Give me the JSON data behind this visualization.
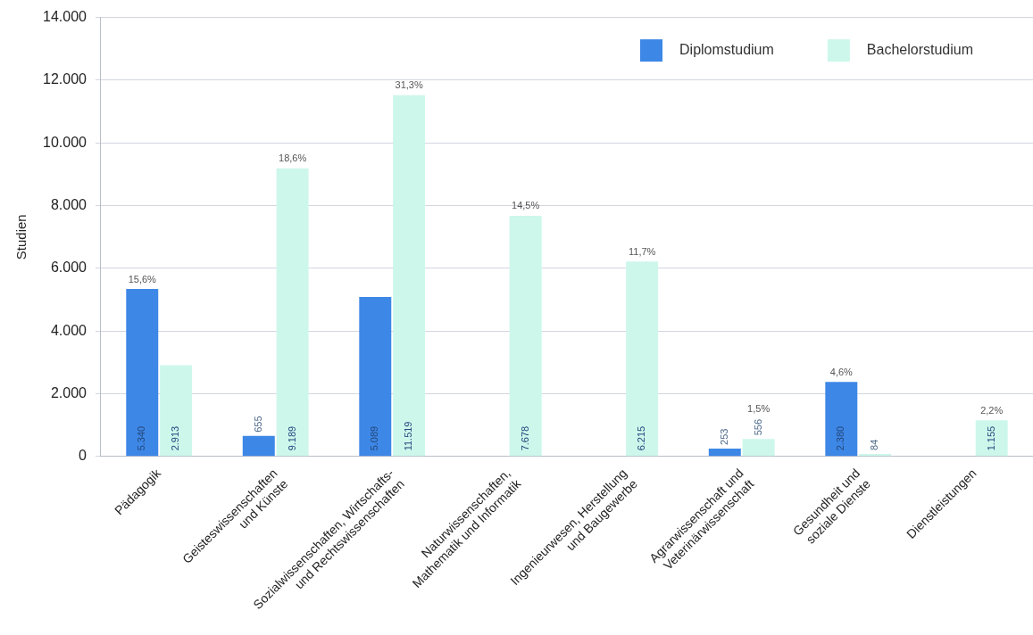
{
  "chart_data": {
    "type": "bar",
    "ylabel": "Studien",
    "categories": [
      "Pädagogik",
      "Geisteswissenschaften\nund Künste",
      "Sozialwissenschaften, Wirtschafts-\nund Rechtswissenschaften",
      "Naturwissenschaften,\nMathematik und Informatik",
      "Ingenieurwesen, Herstellung\nund Baugewerbe",
      "Agrarwissenschaft und\nVeterinärwissenschaft",
      "Gesundheit und\nsoziale Dienste",
      "Dienstleistungen"
    ],
    "series": [
      {
        "name": "Diplomstudium",
        "color": "#3d87e6",
        "values": [
          5340,
          655,
          5089,
          null,
          null,
          253,
          2380,
          null
        ],
        "value_labels": [
          "5.340",
          "655",
          "5.089",
          null,
          null,
          "253",
          "2.380",
          null
        ]
      },
      {
        "name": "Bachelorstudium",
        "color": "#cdf7eb",
        "values": [
          2913,
          9189,
          11519,
          7678,
          6215,
          556,
          84,
          1155
        ],
        "value_labels": [
          "2.913",
          "9.189",
          "11.519",
          "7.678",
          "6.215",
          "556",
          "84",
          "1.155"
        ]
      }
    ],
    "ylim": [
      0,
      14000
    ],
    "yticks": [
      0,
      {
        "value": 2000,
        "label": "2.000"
      },
      {
        "value": 4000,
        "label": "4.000"
      },
      {
        "value": 6000,
        "label": "6.000"
      },
      {
        "value": 8000,
        "label": "8.000"
      },
      {
        "value": 10000,
        "label": "10.000"
      },
      {
        "value": 12000,
        "label": "12.000"
      },
      {
        "value": 14000,
        "label": "14.000"
      }
    ],
    "grid": "y",
    "legend": "top right",
    "annotations": [
      "15,6%",
      "18,6%",
      "31,3%",
      "14,5%",
      "11,7%",
      "1,5%",
      "4,6%",
      "2,2%"
    ]
  }
}
